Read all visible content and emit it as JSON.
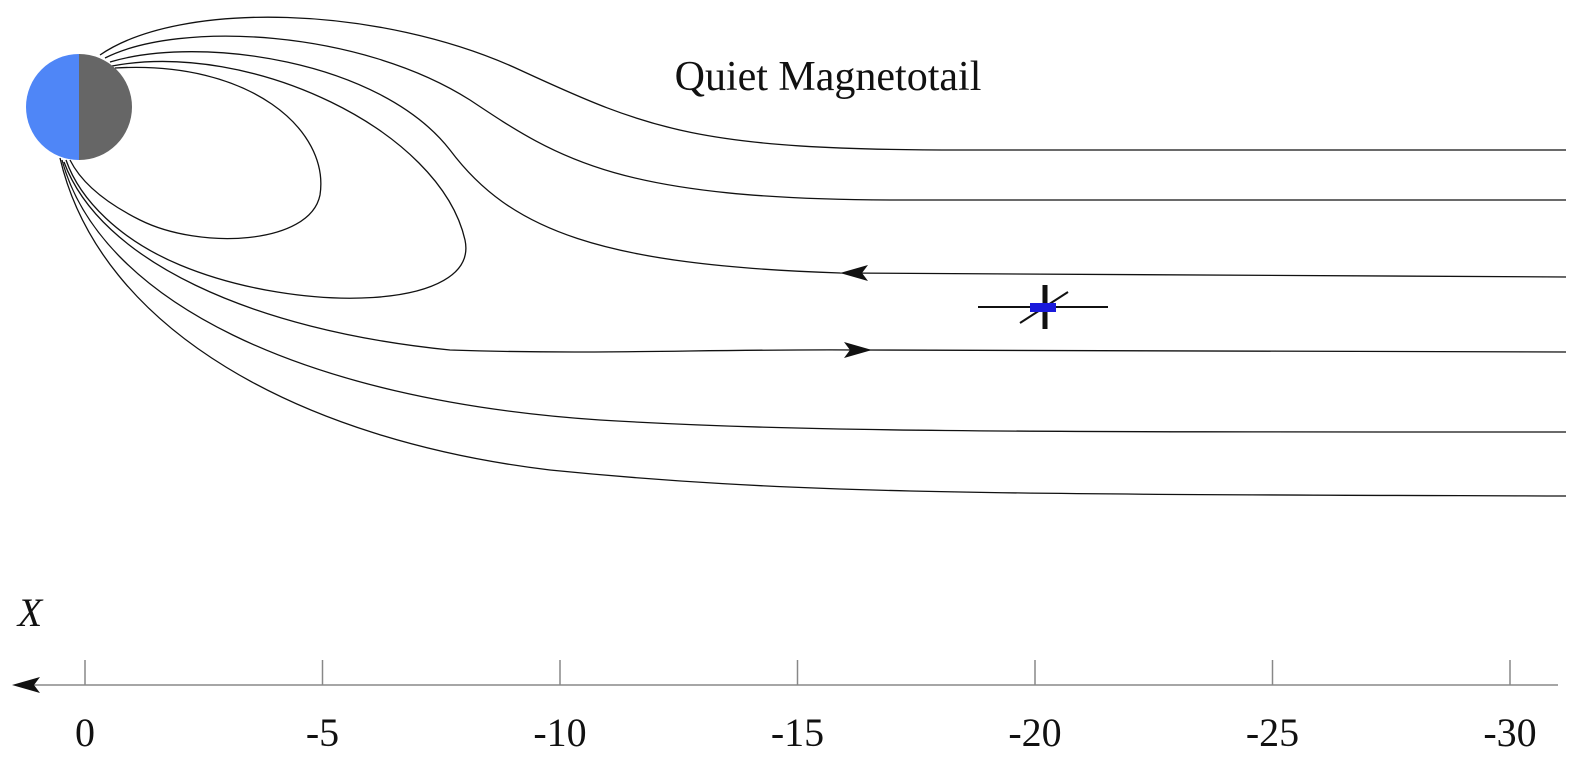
{
  "title": "Quiet Magnetotail",
  "axis": {
    "label": "X",
    "ticks": [
      0,
      -5,
      -10,
      -15,
      -20,
      -25,
      -30
    ]
  }
}
